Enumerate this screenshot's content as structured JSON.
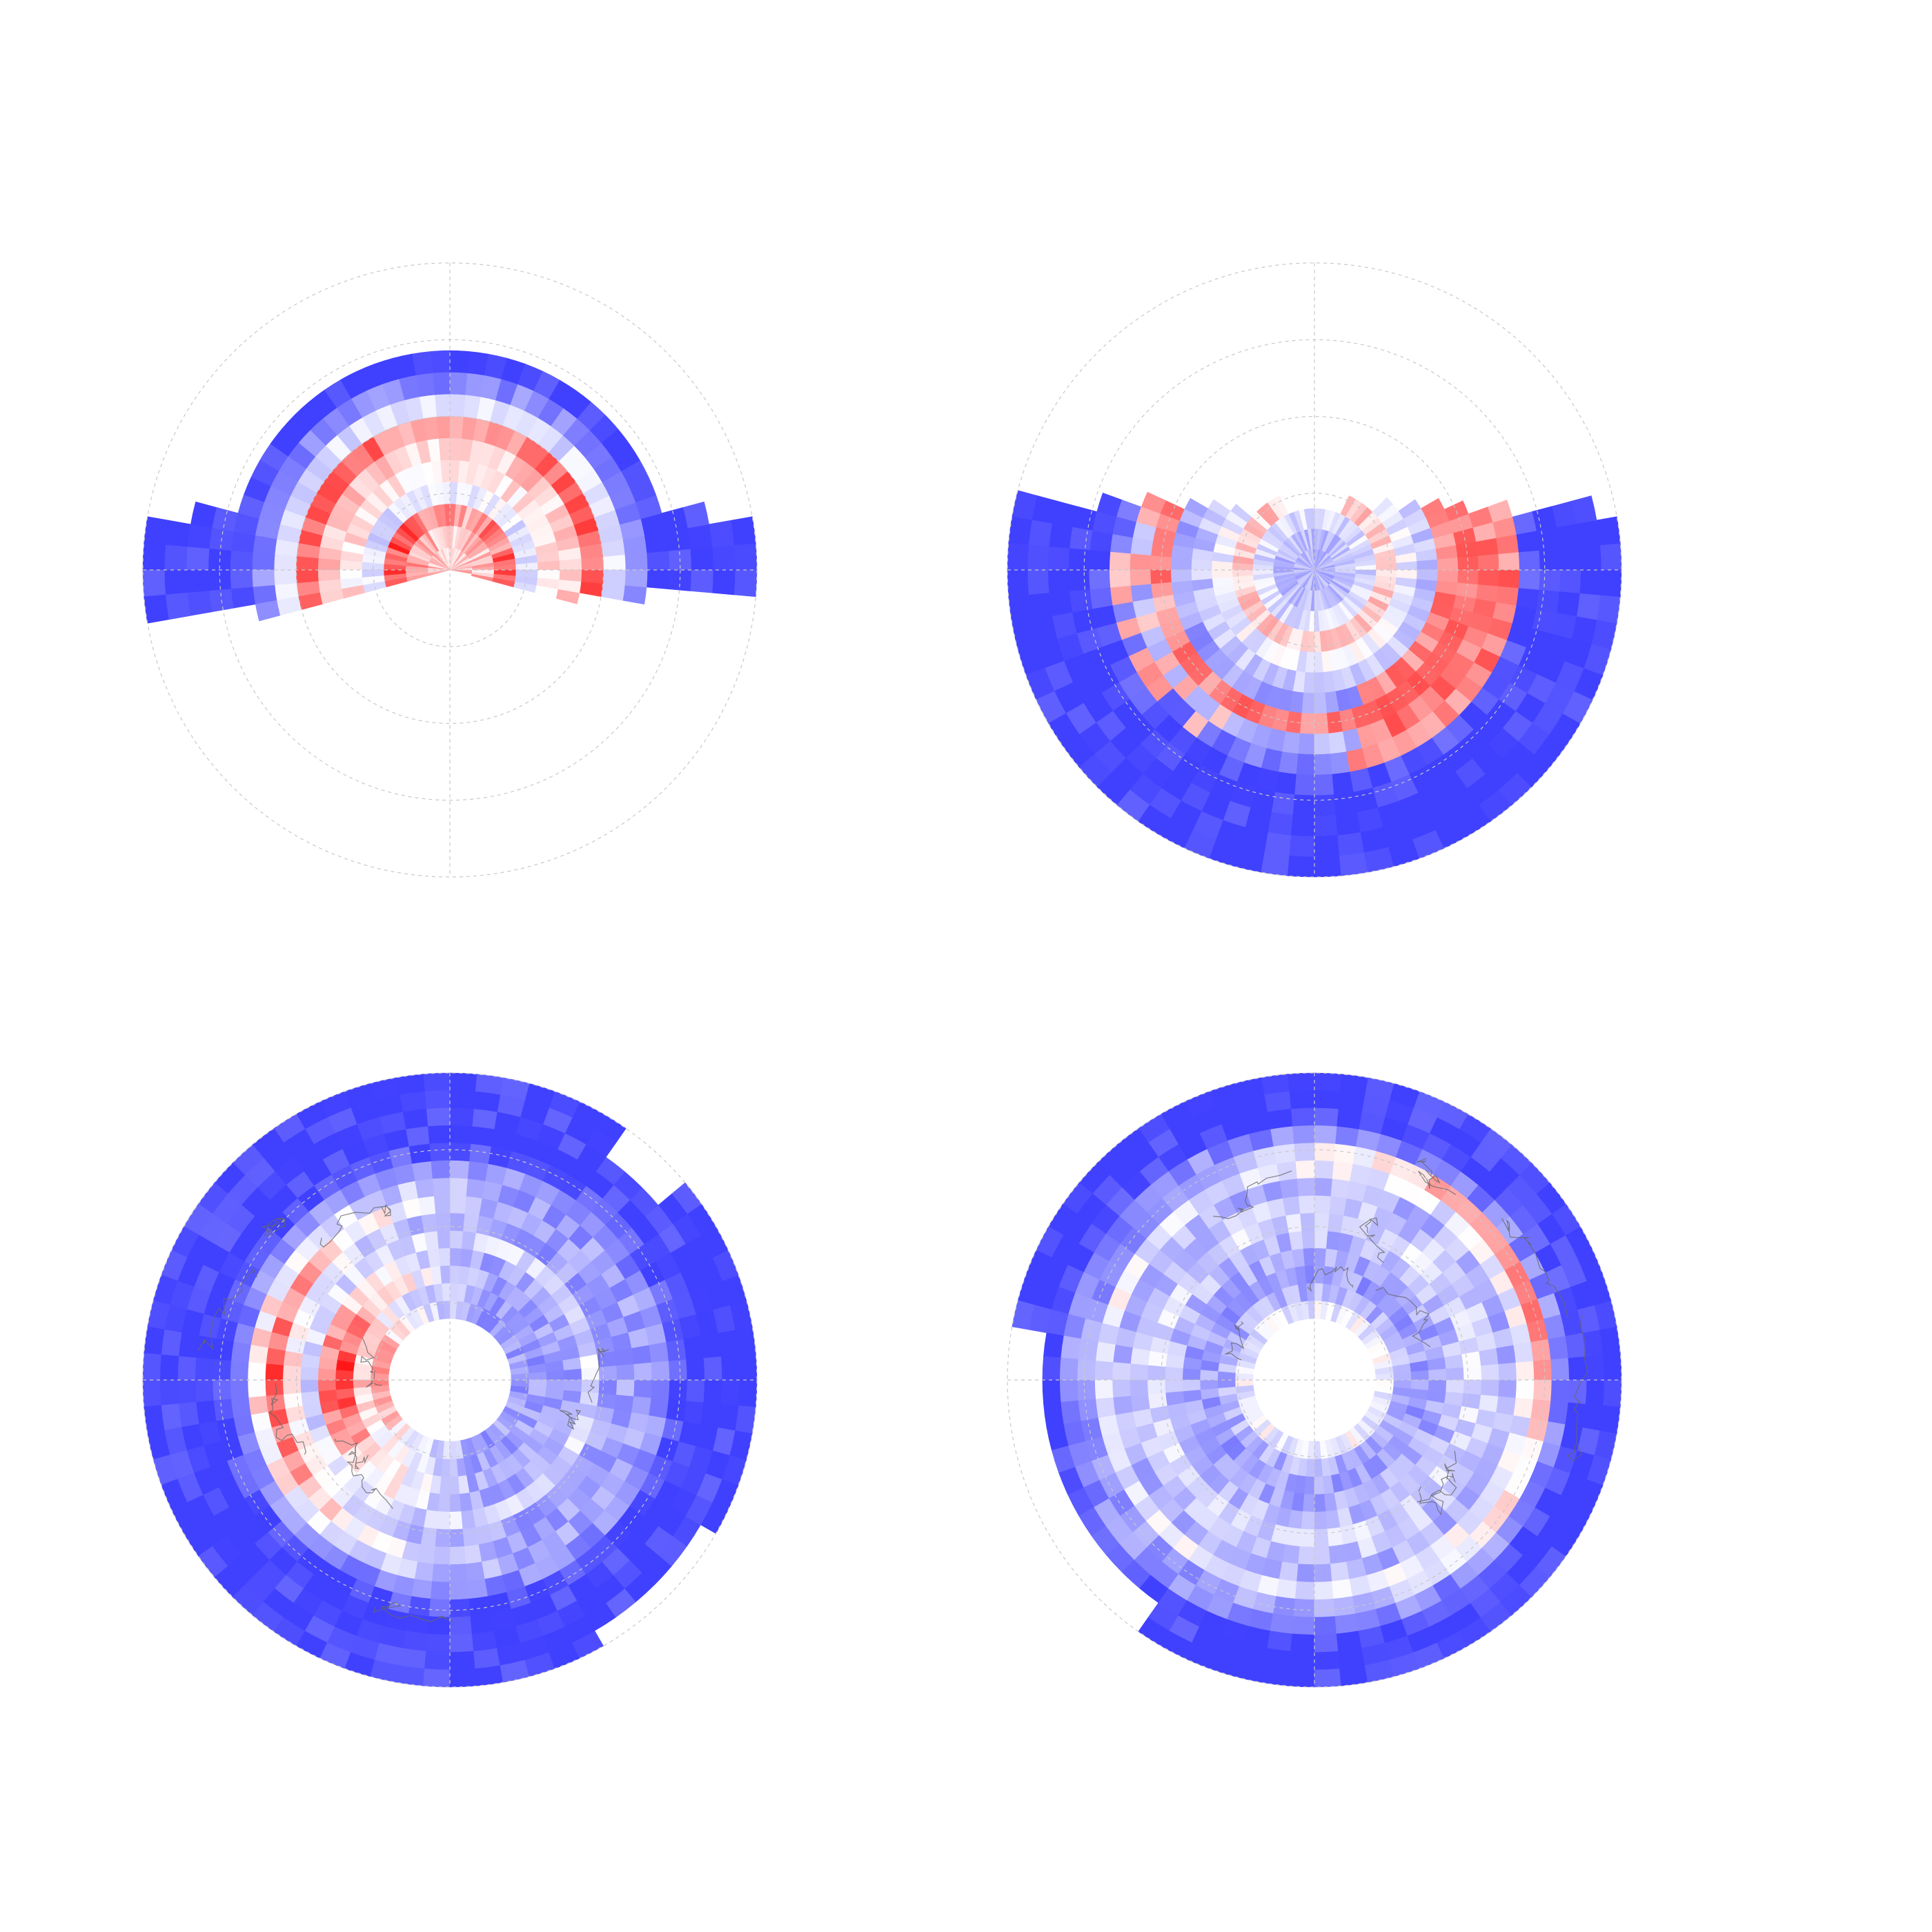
{
  "figure": {
    "background": "#ffffff",
    "colormap": {
      "low": "#4040ff",
      "mid": "#ffffff",
      "high": "#ff0000"
    },
    "grid_color": "#c8c8c8",
    "coast_color": "#666666"
  },
  "chart_data": [
    {
      "type": "heatmap",
      "projection": "polar",
      "panel": "top-left",
      "title": "",
      "rings": 4,
      "sector_kind": "band",
      "theta_range_deg": [
        -13,
        193
      ],
      "ring_profile": [
        -1,
        -1,
        -1,
        -1,
        -1,
        -0.6,
        -0.2,
        0.6,
        0.2,
        0.1,
        -0.3,
        0.8,
        0.4,
        0.3
      ],
      "show_coastlines": false,
      "grid": true
    },
    {
      "type": "heatmap",
      "projection": "polar",
      "panel": "top-right",
      "title": "",
      "rings": 4,
      "sector_kind": "band-down",
      "theta_range_deg": [
        -190,
        8
      ],
      "ring_profile": [
        -1,
        -1,
        -1,
        -1,
        -0.9,
        -0.7,
        -0.4,
        0.5,
        -0.5,
        -0.3,
        -0.1,
        0.2,
        -0.2,
        -0.35,
        -0.4
      ],
      "show_coastlines": false,
      "grid": true
    },
    {
      "type": "heatmap",
      "projection": "polar",
      "panel": "bottom-left",
      "title": "",
      "rings": 4,
      "sector_kind": "full",
      "hole_fraction": 0.2,
      "hot_center_deg": 180,
      "ring_profile": [
        -1,
        -1,
        -1,
        -1,
        -0.9,
        -0.6,
        0.2,
        0.7,
        0.1,
        -0.2,
        0.6,
        0.8,
        0.3,
        0.5
      ],
      "show_coastlines": true,
      "grid": true
    },
    {
      "type": "heatmap",
      "projection": "polar",
      "panel": "bottom-right",
      "title": "",
      "rings": 4,
      "sector_kind": "full",
      "hole_fraction": 0.2,
      "hot_center_deg": 20,
      "ring_profile": [
        -1,
        -1,
        -0.95,
        -0.6,
        0.6,
        -0.1,
        -0.4,
        -0.3,
        -0.2,
        -0.35,
        -0.45,
        -0.5,
        -0.4,
        -0.1
      ],
      "show_coastlines": true,
      "grid": true
    }
  ]
}
